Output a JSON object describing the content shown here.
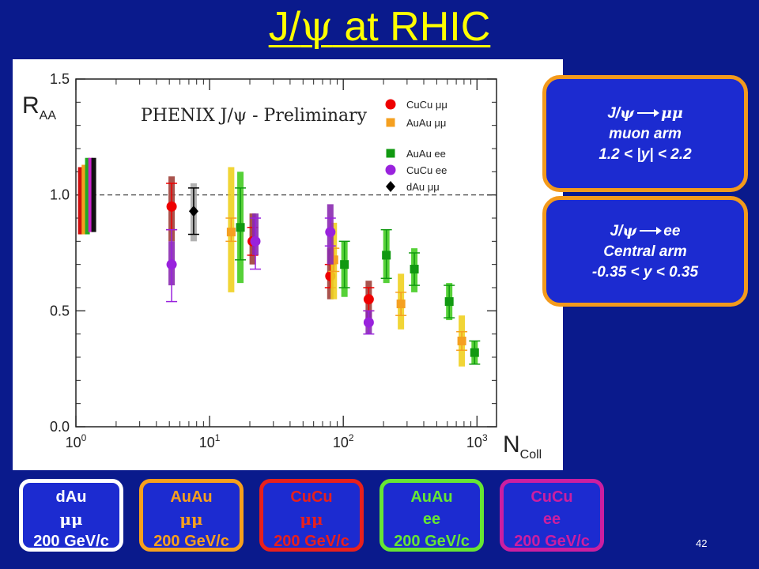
{
  "slide": {
    "title_prefix": "J/",
    "title_symbol": "ψ",
    "title_suffix": " at RHIC",
    "page_number": "42"
  },
  "info_boxes": [
    {
      "line1_prefix": "J/",
      "line1_symbol": "ψ",
      "line1_suffix": "μμ",
      "line2": "muon arm",
      "line3": "1.2 < |y| < 2.2"
    },
    {
      "line1_prefix": "J/",
      "line1_symbol": "ψ",
      "line1_suffix": "ee",
      "line2": "Central arm",
      "line3": "-0.35 < y < 0.35"
    }
  ],
  "legend_boxes": [
    {
      "system": "dAu",
      "channel": "μμ",
      "energy": "200 GeV/c",
      "color": "#ffffff"
    },
    {
      "system": "AuAu",
      "channel": "μμ",
      "energy": "200 GeV/c",
      "color": "#f7a01c"
    },
    {
      "system": "CuCu",
      "channel": "μμ",
      "energy": "200 GeV/c",
      "color": "#e8201c"
    },
    {
      "system": "AuAu",
      "channel": "ee",
      "energy": "200 GeV/c",
      "color": "#66e633"
    },
    {
      "system": "CuCu",
      "channel": "ee",
      "energy": "200 GeV/c",
      "color": "#cc1ea0"
    }
  ],
  "chart_data": {
    "type": "scatter",
    "title": "PHENIX J/ψ - Preliminary",
    "ylabel_main": "R",
    "ylabel_sub": "AA",
    "xlabel_main": "N",
    "xlabel_sub": "Coll",
    "x_scale": "log",
    "xlim": [
      1,
      1400
    ],
    "ylim": [
      0,
      1.5
    ],
    "x_ticks": [
      {
        "value": 1,
        "base": "10",
        "exp": "0"
      },
      {
        "value": 10,
        "base": "10",
        "exp": "1"
      },
      {
        "value": 100,
        "base": "10",
        "exp": "2"
      },
      {
        "value": 1000,
        "base": "10",
        "exp": "3"
      }
    ],
    "y_ticks": [
      {
        "value": 0.0,
        "label": "0.0"
      },
      {
        "value": 0.5,
        "label": "0.5"
      },
      {
        "value": 1.0,
        "label": "1.0"
      },
      {
        "value": 1.5,
        "label": "1.5"
      }
    ],
    "reference_line": 1.0,
    "grid": false,
    "legend_position": "top-right",
    "normalization_bars": [
      {
        "x": 1.08,
        "low": 0.83,
        "high": 1.12,
        "color": "#d01010"
      },
      {
        "x": 1.15,
        "low": 0.83,
        "high": 1.13,
        "color": "#f5a020"
      },
      {
        "x": 1.22,
        "low": 0.83,
        "high": 1.16,
        "color": "#22aa22"
      },
      {
        "x": 1.29,
        "low": 0.84,
        "high": 1.16,
        "color": "#cc22cc"
      },
      {
        "x": 1.36,
        "low": 0.84,
        "high": 1.16,
        "color": "#111111"
      }
    ],
    "series": [
      {
        "name": "CuCu μμ",
        "marker": "circle",
        "color": "#ee0000",
        "syst_color": "#a0403a",
        "points": [
          {
            "x": 5.2,
            "y": 0.95,
            "stat": [
              0.85,
              1.05
            ],
            "syst": [
              0.8,
              1.08
            ]
          },
          {
            "x": 21,
            "y": 0.8,
            "stat": [
              0.74,
              0.86
            ],
            "syst": [
              0.7,
              0.92
            ]
          },
          {
            "x": 80,
            "y": 0.65,
            "stat": [
              0.6,
              0.7
            ],
            "syst": [
              0.55,
              0.77
            ]
          },
          {
            "x": 155,
            "y": 0.55,
            "stat": [
              0.5,
              0.6
            ],
            "syst": [
              0.45,
              0.63
            ]
          }
        ]
      },
      {
        "name": "AuAu μμ",
        "marker": "square",
        "color": "#f5a020",
        "syst_color": "#f0d020",
        "points": [
          {
            "x": 14.5,
            "y": 0.84,
            "stat": [
              0.8,
              0.9
            ],
            "syst": [
              0.58,
              1.12
            ]
          },
          {
            "x": 85,
            "y": 0.72,
            "stat": [
              0.67,
              0.77
            ],
            "syst": [
              0.55,
              0.88
            ]
          },
          {
            "x": 270,
            "y": 0.53,
            "stat": [
              0.48,
              0.58
            ],
            "syst": [
              0.42,
              0.66
            ]
          },
          {
            "x": 770,
            "y": 0.37,
            "stat": [
              0.33,
              0.41
            ],
            "syst": [
              0.26,
              0.48
            ]
          }
        ]
      },
      {
        "name": "AuAu ee",
        "marker": "square",
        "color": "#119911",
        "syst_color": "#44cc22",
        "points": [
          {
            "x": 17,
            "y": 0.86,
            "stat": [
              0.72,
              1.03
            ],
            "syst": [
              0.62,
              1.1
            ]
          },
          {
            "x": 102,
            "y": 0.7,
            "stat": [
              0.6,
              0.8
            ],
            "syst": [
              0.56,
              0.8
            ]
          },
          {
            "x": 210,
            "y": 0.74,
            "stat": [
              0.64,
              0.85
            ],
            "syst": [
              0.62,
              0.85
            ]
          },
          {
            "x": 340,
            "y": 0.68,
            "stat": [
              0.61,
              0.75
            ],
            "syst": [
              0.58,
              0.77
            ]
          },
          {
            "x": 620,
            "y": 0.54,
            "stat": [
              0.47,
              0.61
            ],
            "syst": [
              0.46,
              0.62
            ]
          },
          {
            "x": 960,
            "y": 0.32,
            "stat": [
              0.27,
              0.37
            ],
            "syst": [
              0.27,
              0.37
            ]
          }
        ]
      },
      {
        "name": "CuCu ee",
        "marker": "circle",
        "color": "#9922dd",
        "syst_color": "#8a2ab0",
        "points": [
          {
            "x": 5.2,
            "y": 0.7,
            "stat": [
              0.54,
              0.85
            ],
            "syst": [
              0.61,
              0.8
            ]
          },
          {
            "x": 22,
            "y": 0.8,
            "stat": [
              0.68,
              0.9
            ],
            "syst": [
              0.74,
              0.92
            ]
          },
          {
            "x": 80,
            "y": 0.84,
            "stat": [
              0.78,
              0.9
            ],
            "syst": [
              0.7,
              0.96
            ]
          },
          {
            "x": 155,
            "y": 0.45,
            "stat": [
              0.4,
              0.5
            ],
            "syst": [
              0.4,
              0.5
            ]
          }
        ]
      },
      {
        "name": "dAu μμ",
        "marker": "diamond",
        "color": "#000000",
        "syst_color": "#aaaaaa",
        "points": [
          {
            "x": 7.6,
            "y": 0.93,
            "stat": [
              0.83,
              1.03
            ],
            "syst": [
              0.8,
              1.05
            ]
          }
        ]
      }
    ]
  }
}
